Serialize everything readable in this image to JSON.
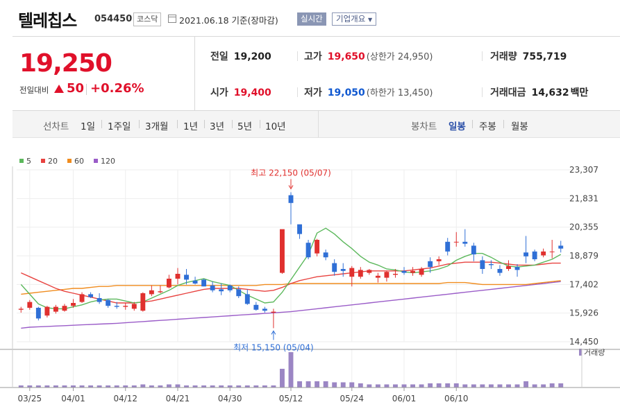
{
  "header": {
    "name": "텔레칩스",
    "code": "054450",
    "market": "코스닥",
    "date": "2021.06.18 기준(장마감)",
    "realtime_label": "실시간",
    "corp_label": "기업개요"
  },
  "summary": {
    "price": "19,250",
    "change_label": "전일대비",
    "change_value": "50",
    "change_pct": "+0.26%",
    "prev_close": {
      "label": "전일",
      "value": "19,200"
    },
    "open": {
      "label": "시가",
      "value": "19,400"
    },
    "high": {
      "label": "고가",
      "value": "19,650",
      "limit": "(상한가 24,950)"
    },
    "low": {
      "label": "저가",
      "value": "19,050",
      "limit": "(하한가 13,450)"
    },
    "volume": {
      "label": "거래량",
      "value": "755,719"
    },
    "amount": {
      "label": "거래대금",
      "value": "14,632",
      "unit": "백만"
    }
  },
  "period": {
    "line_label": "선차트",
    "line_items": [
      "1일",
      "1주일",
      "3개월",
      "1년",
      "3년",
      "5년",
      "10년"
    ],
    "candle_label": "봉차트",
    "candle_items": [
      "일봉",
      "주봉",
      "월봉"
    ],
    "active": "일봉"
  },
  "chart_data": {
    "type": "candlestick",
    "legend": [
      {
        "name": "5",
        "color": "#5cb85c"
      },
      {
        "name": "20",
        "color": "#e8423f"
      },
      {
        "name": "60",
        "color": "#f08c1e"
      },
      {
        "name": "120",
        "color": "#9a5cc8"
      }
    ],
    "y_ticks": [
      "23,307",
      "21,831",
      "20,355",
      "18,879",
      "17,402",
      "15,926",
      "14,450"
    ],
    "ylim": [
      14450,
      23307
    ],
    "x_ticks": [
      "03/25",
      "04/01",
      "04/12",
      "04/21",
      "04/30",
      "05/12",
      "05/24",
      "06/01",
      "06/10"
    ],
    "x_tick_index": [
      1,
      6,
      12,
      18,
      24,
      31,
      38,
      44,
      50
    ],
    "volume_label": "거래량",
    "annotations": {
      "high": "최고 22,150 (05/07)",
      "low": "최저 15,150 (05/04)"
    },
    "ohlc": [
      [
        16100,
        16250,
        15950,
        16150
      ],
      [
        16200,
        16600,
        16100,
        16500
      ],
      [
        16200,
        16250,
        15550,
        15650
      ],
      [
        15800,
        16300,
        15700,
        16250
      ],
      [
        16000,
        16350,
        15900,
        16250
      ],
      [
        16050,
        16400,
        16000,
        16300
      ],
      [
        16300,
        16650,
        16200,
        16450
      ],
      [
        16500,
        17000,
        16450,
        16900
      ],
      [
        16900,
        17000,
        16700,
        16750
      ],
      [
        16700,
        16950,
        16400,
        16500
      ],
      [
        16600,
        16650,
        16200,
        16300
      ],
      [
        16300,
        16500,
        16150,
        16250
      ],
      [
        16250,
        16450,
        16100,
        16300
      ],
      [
        16150,
        16500,
        16050,
        16400
      ],
      [
        16050,
        17000,
        16000,
        16950
      ],
      [
        16900,
        17350,
        16800,
        17100
      ],
      [
        17000,
        17350,
        16950,
        17050
      ],
      [
        17250,
        17900,
        17200,
        17700
      ],
      [
        17700,
        18250,
        17400,
        17950
      ],
      [
        17900,
        18200,
        17400,
        17650
      ],
      [
        17600,
        17800,
        17400,
        17450
      ],
      [
        17650,
        17700,
        17300,
        17300
      ],
      [
        17350,
        17550,
        17000,
        17100
      ],
      [
        17150,
        17450,
        16850,
        17050
      ],
      [
        17350,
        17400,
        17000,
        17100
      ],
      [
        17150,
        17300,
        16700,
        16800
      ],
      [
        16900,
        17150,
        16350,
        16400
      ],
      [
        16350,
        16500,
        16050,
        16100
      ],
      [
        16150,
        16250,
        15950,
        16050
      ],
      [
        15950,
        16150,
        15150,
        16000
      ],
      [
        18000,
        20200,
        17950,
        20250
      ],
      [
        22000,
        22150,
        20500,
        21600
      ],
      [
        20500,
        20450,
        19750,
        20000
      ],
      [
        19550,
        19700,
        18700,
        18800
      ],
      [
        19000,
        19750,
        18850,
        19700
      ],
      [
        19050,
        19200,
        18650,
        18800
      ],
      [
        18500,
        18700,
        17850,
        18050
      ],
      [
        18200,
        18500,
        17800,
        18100
      ],
      [
        17800,
        18350,
        17300,
        18250
      ],
      [
        17800,
        18300,
        17700,
        18150
      ],
      [
        18000,
        18200,
        17900,
        18150
      ],
      [
        17750,
        18000,
        17500,
        17850
      ],
      [
        17750,
        18100,
        17550,
        18050
      ],
      [
        17900,
        18200,
        17750,
        17950
      ],
      [
        18100,
        18300,
        17900,
        18000
      ],
      [
        18000,
        18300,
        17850,
        18100
      ],
      [
        17900,
        18300,
        17800,
        18200
      ],
      [
        18600,
        18800,
        18000,
        18300
      ],
      [
        18600,
        18850,
        18400,
        18700
      ],
      [
        19600,
        19800,
        18900,
        19100
      ],
      [
        19600,
        20100,
        19350,
        19600
      ],
      [
        19600,
        20250,
        19350,
        19500
      ],
      [
        19400,
        19550,
        18600,
        18950
      ],
      [
        18650,
        18850,
        17950,
        18200
      ],
      [
        18450,
        18650,
        18200,
        18400
      ],
      [
        18200,
        18400,
        17850,
        18000
      ],
      [
        18200,
        18650,
        18100,
        18350
      ],
      [
        18300,
        18450,
        17800,
        18150
      ],
      [
        19050,
        19900,
        18500,
        18850
      ],
      [
        19100,
        19200,
        18600,
        18700
      ],
      [
        18900,
        19250,
        18800,
        19100
      ],
      [
        19100,
        19700,
        18750,
        19100
      ],
      [
        19400,
        19650,
        19050,
        19250
      ]
    ],
    "ma5": [
      17400,
      16900,
      16400,
      16200,
      16150,
      16150,
      16250,
      16350,
      16500,
      16600,
      16650,
      16650,
      16550,
      16450,
      16500,
      16700,
      16900,
      17100,
      17350,
      17500,
      17600,
      17700,
      17550,
      17450,
      17350,
      17100,
      16850,
      16650,
      16450,
      16500,
      17000,
      17650,
      18300,
      18950,
      20050,
      20300,
      20000,
      19600,
      19250,
      18850,
      18550,
      18400,
      18200,
      18150,
      18050,
      18000,
      18050,
      18100,
      18200,
      18350,
      18650,
      18850,
      19000,
      19000,
      18800,
      18550,
      18350,
      18300,
      18350,
      18400,
      18550,
      18700,
      18950
    ],
    "ma20": [
      18000,
      17800,
      17600,
      17400,
      17200,
      17050,
      16950,
      16850,
      16750,
      16650,
      16550,
      16450,
      16450,
      16450,
      16500,
      16550,
      16650,
      16750,
      16850,
      16950,
      17050,
      17150,
      17200,
      17200,
      17200,
      17200,
      17150,
      17100,
      17050,
      17100,
      17250,
      17450,
      17600,
      17700,
      17800,
      17850,
      17900,
      17950,
      18000,
      18050,
      18100,
      18100,
      18100,
      18100,
      18100,
      18150,
      18200,
      18250,
      18350,
      18450,
      18500,
      18550,
      18550,
      18550,
      18550,
      18500,
      18450,
      18400,
      18400,
      18400,
      18450,
      18500,
      18500
    ],
    "ma60": [
      16900,
      16950,
      17000,
      17050,
      17100,
      17150,
      17200,
      17200,
      17250,
      17300,
      17300,
      17350,
      17350,
      17350,
      17350,
      17350,
      17350,
      17350,
      17350,
      17350,
      17350,
      17350,
      17350,
      17350,
      17350,
      17350,
      17350,
      17350,
      17400,
      17400,
      17400,
      17450,
      17450,
      17450,
      17450,
      17450,
      17450,
      17450,
      17450,
      17450,
      17450,
      17450,
      17450,
      17450,
      17450,
      17450,
      17450,
      17450,
      17450,
      17500,
      17500,
      17500,
      17450,
      17400,
      17400,
      17400,
      17400,
      17400,
      17400,
      17450,
      17500,
      17550,
      17600
    ],
    "ma120": [
      15150,
      15200,
      15220,
      15240,
      15260,
      15280,
      15300,
      15320,
      15340,
      15360,
      15380,
      15400,
      15430,
      15460,
      15490,
      15520,
      15550,
      15580,
      15610,
      15640,
      15670,
      15700,
      15730,
      15760,
      15790,
      15820,
      15850,
      15880,
      15910,
      15940,
      15970,
      16000,
      16050,
      16100,
      16150,
      16200,
      16250,
      16300,
      16350,
      16400,
      16450,
      16500,
      16550,
      16600,
      16650,
      16700,
      16750,
      16800,
      16850,
      16900,
      16950,
      17000,
      17050,
      17100,
      17150,
      17200,
      17250,
      17300,
      17350,
      17400,
      17450,
      17500,
      17550
    ],
    "volume": [
      2,
      2,
      2,
      2,
      2,
      2,
      2,
      2,
      2,
      2,
      2,
      2,
      2,
      2,
      3,
      2,
      2,
      3,
      3,
      2,
      2,
      2,
      2,
      2,
      2,
      2,
      2,
      2,
      2,
      2,
      18,
      34,
      6,
      6,
      6,
      6,
      5,
      5,
      5,
      4,
      3,
      3,
      3,
      3,
      3,
      3,
      3,
      4,
      4,
      4,
      4,
      3,
      3,
      3,
      3,
      3,
      3,
      3,
      6,
      3,
      3,
      4,
      4
    ]
  }
}
